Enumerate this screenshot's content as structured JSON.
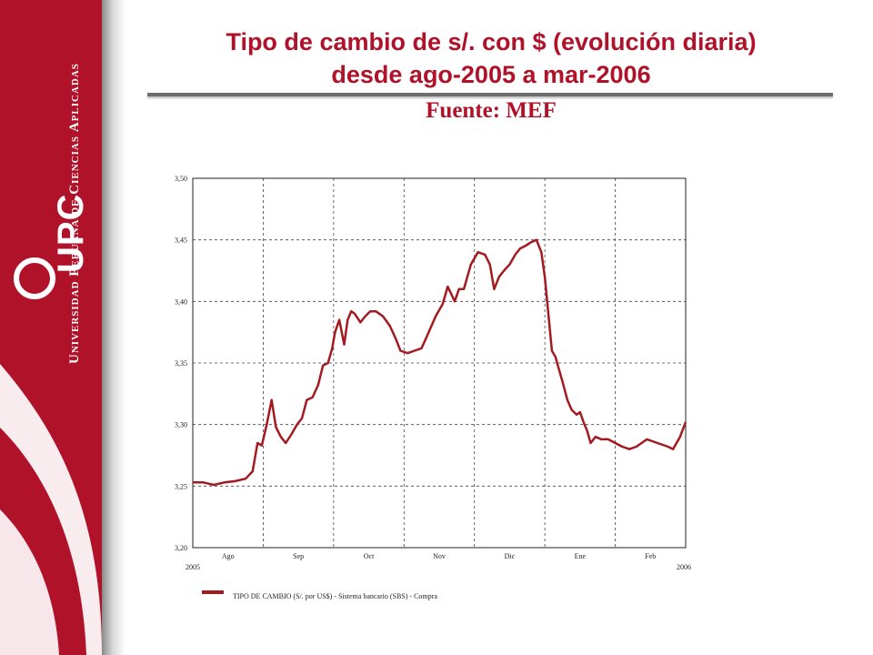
{
  "header": {
    "title_line1": "Tipo de cambio de s/. con $ (evolución diaria)",
    "title_line2": "desde ago-2005 a mar-2006",
    "source": "Fuente: MEF"
  },
  "brand": {
    "logo_text": "UPC",
    "university_name": "Universidad Peruana de Ciencias Aplicadas",
    "primary_color": "#b0122a"
  },
  "chart_data": {
    "type": "line",
    "title": "",
    "xlabel": "",
    "ylabel": "",
    "grid": true,
    "ylim": [
      3.2,
      3.5
    ],
    "xlim": [
      0,
      7
    ],
    "y_ticks": [
      "3,20",
      "3,25",
      "3,30",
      "3,35",
      "3,40",
      "3,45",
      "3,50"
    ],
    "x_tick_labels": [
      "Ago",
      "Sep",
      "Oct",
      "Nov",
      "Dic",
      "Ene",
      "Feb"
    ],
    "year_labels": [
      "2005",
      "2006"
    ],
    "legend": "TIPO DE CAMBIO (S/. por US$) - Sistema bancario (SBS) - Compra",
    "series": [
      {
        "name": "TIPO DE CAMBIO (S/. por US$) - Sistema bancario (SBS) - Compra",
        "color": "#a31a20",
        "x": [
          0.0,
          0.15,
          0.3,
          0.45,
          0.6,
          0.75,
          0.85,
          0.92,
          0.98,
          1.05,
          1.12,
          1.18,
          1.25,
          1.32,
          1.4,
          1.48,
          1.55,
          1.62,
          1.7,
          1.78,
          1.85,
          1.92,
          1.98,
          2.02,
          2.08,
          2.15,
          2.2,
          2.25,
          2.3,
          2.38,
          2.45,
          2.52,
          2.6,
          2.7,
          2.8,
          2.88,
          2.95,
          3.05,
          3.15,
          3.25,
          3.35,
          3.45,
          3.55,
          3.62,
          3.68,
          3.72,
          3.78,
          3.85,
          3.95,
          4.05,
          4.15,
          4.22,
          4.28,
          4.35,
          4.42,
          4.5,
          4.58,
          4.65,
          4.72,
          4.8,
          4.88,
          4.95,
          5.0,
          5.05,
          5.1,
          5.15,
          5.2,
          5.25,
          5.32,
          5.38,
          5.45,
          5.5,
          5.55,
          5.6,
          5.65,
          5.72,
          5.8,
          5.9,
          6.0,
          6.1,
          6.2,
          6.3,
          6.45,
          6.6,
          6.75,
          6.82,
          6.92,
          7.0
        ],
        "values": [
          3.253,
          3.253,
          3.251,
          3.253,
          3.254,
          3.256,
          3.262,
          3.285,
          3.283,
          3.3,
          3.32,
          3.298,
          3.29,
          3.285,
          3.292,
          3.3,
          3.305,
          3.32,
          3.322,
          3.332,
          3.348,
          3.35,
          3.362,
          3.375,
          3.385,
          3.365,
          3.385,
          3.392,
          3.39,
          3.383,
          3.388,
          3.392,
          3.392,
          3.388,
          3.38,
          3.37,
          3.36,
          3.358,
          3.36,
          3.362,
          3.375,
          3.388,
          3.398,
          3.412,
          3.405,
          3.4,
          3.41,
          3.41,
          3.43,
          3.44,
          3.438,
          3.43,
          3.41,
          3.42,
          3.425,
          3.43,
          3.438,
          3.443,
          3.445,
          3.448,
          3.45,
          3.44,
          3.42,
          3.39,
          3.36,
          3.355,
          3.345,
          3.335,
          3.32,
          3.312,
          3.308,
          3.31,
          3.302,
          3.295,
          3.285,
          3.29,
          3.288,
          3.288,
          3.285,
          3.282,
          3.28,
          3.282,
          3.288,
          3.285,
          3.282,
          3.28,
          3.29,
          3.302
        ]
      }
    ]
  }
}
